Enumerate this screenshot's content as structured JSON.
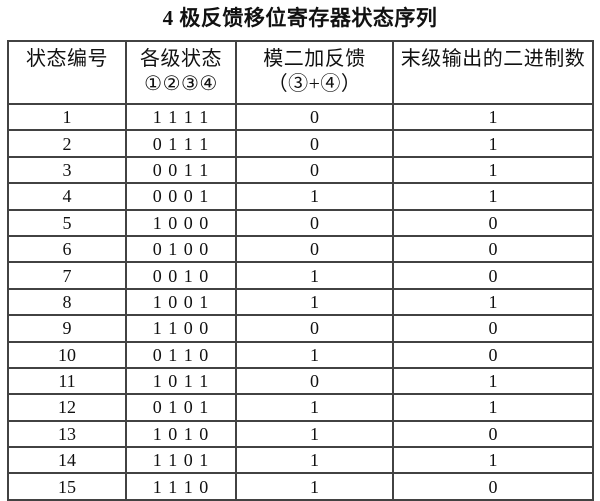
{
  "page": {
    "title": "4 极反馈移位寄存器状态序列"
  },
  "table": {
    "columns": [
      {
        "id": "state-number",
        "line1": "状态编号",
        "line2": ""
      },
      {
        "id": "stage-states",
        "line1": "各级状态",
        "line2": "①②③④"
      },
      {
        "id": "mod2-feedback",
        "line1": "模二加反馈",
        "line2": "（③+④）"
      },
      {
        "id": "last-stage-output",
        "line1": "末级输出的二进制数",
        "line2": ""
      }
    ],
    "rows": [
      [
        "1",
        "1 1 1 1",
        "0",
        "1"
      ],
      [
        "2",
        "0 1 1 1",
        "0",
        "1"
      ],
      [
        "3",
        "0 0 1 1",
        "0",
        "1"
      ],
      [
        "4",
        "0 0 0 1",
        "1",
        "1"
      ],
      [
        "5",
        "1 0 0 0",
        "0",
        "0"
      ],
      [
        "6",
        "0 1 0 0",
        "0",
        "0"
      ],
      [
        "7",
        "0 0 1 0",
        "1",
        "0"
      ],
      [
        "8",
        "1 0 0 1",
        "1",
        "1"
      ],
      [
        "9",
        "1 1 0 0",
        "0",
        "0"
      ],
      [
        "10",
        "0 1 1 0",
        "1",
        "0"
      ],
      [
        "11",
        "1 0 1 1",
        "0",
        "1"
      ],
      [
        "12",
        "0 1 0 1",
        "1",
        "1"
      ],
      [
        "13",
        "1 0 1 0",
        "1",
        "0"
      ],
      [
        "14",
        "1 1 0 1",
        "1",
        "1"
      ],
      [
        "15",
        "1 1 1 0",
        "1",
        "0"
      ]
    ]
  },
  "colors": {
    "background": "#ffffff",
    "border": "#424242",
    "text": "#111111"
  }
}
